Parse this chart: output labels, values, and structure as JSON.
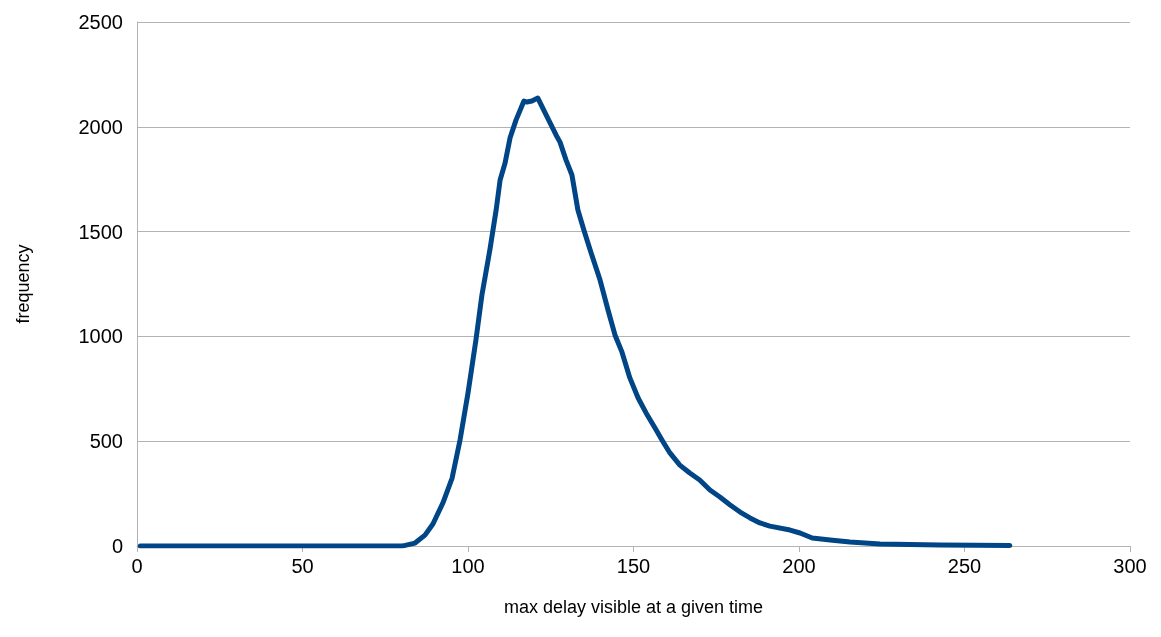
{
  "chart_data": {
    "type": "line",
    "xlabel": "max delay visible at a given time",
    "ylabel": "frequency",
    "x": [
      1,
      80,
      81,
      84,
      87,
      89.4,
      92.4,
      95.2,
      97.6,
      100,
      102.4,
      104.2,
      106.6,
      108.5,
      109.7,
      111.2,
      112.7,
      114.5,
      116.9,
      117.8,
      119.3,
      121.1,
      123.3,
      125.1,
      126.6,
      127.8,
      129.6,
      131.4,
      133.2,
      135,
      137.2,
      139.9,
      142.3,
      144.4,
      146.5,
      148.9,
      151.4,
      153.8,
      156.5,
      158.6,
      161,
      164,
      167,
      170,
      173.1,
      176.1,
      179.2,
      182.2,
      185.2,
      188.2,
      191.2,
      197.3,
      200.3,
      204,
      209.4,
      215.4,
      224.5,
      242.6,
      263.7
    ],
    "series": [
      {
        "color": "#004586",
        "values": [
          0,
          0,
          3,
          14,
          52,
          105,
          205,
          324,
          506,
          730,
          983,
          1197,
          1412,
          1603,
          1746,
          1827,
          1947,
          2032,
          2123,
          2118,
          2123,
          2137,
          2066,
          2009,
          1961,
          1927,
          1842,
          1770,
          1603,
          1508,
          1398,
          1269,
          1126,
          1007,
          926,
          802,
          706,
          635,
          563,
          506,
          444,
          386,
          348,
          315,
          267,
          234,
          196,
          162,
          134,
          110,
          95,
          76,
          62,
          38,
          29,
          19,
          10,
          5,
          2
        ]
      }
    ],
    "xlim": [
      0,
      300
    ],
    "xticks": [
      0,
      50,
      100,
      150,
      200,
      250,
      300
    ],
    "ylim": [
      0,
      2500
    ],
    "yticks": [
      0,
      500,
      1000,
      1500,
      2000,
      2500
    ],
    "grid": "y",
    "marker": "none",
    "line_style": "solid"
  }
}
